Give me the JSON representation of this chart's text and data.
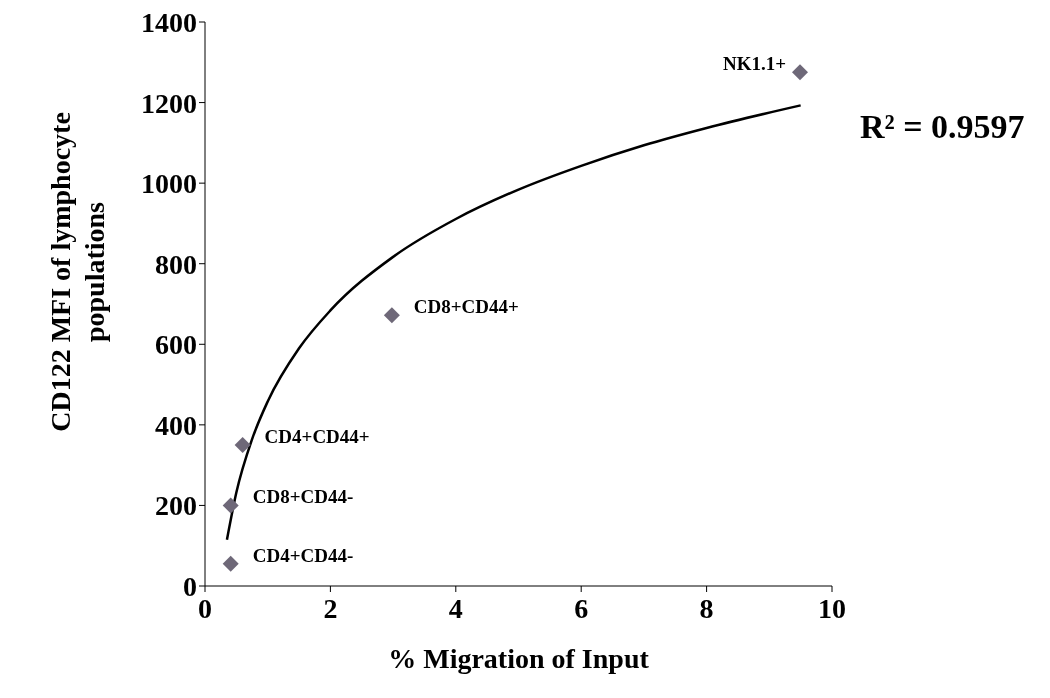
{
  "chart_data": {
    "type": "scatter",
    "xlabel": "% Migration of Input",
    "ylabel": "CD122 MFI of lymphocyte populations",
    "xlim": [
      0,
      10
    ],
    "xticks": [
      0,
      2,
      4,
      6,
      8,
      10
    ],
    "ylim": [
      0,
      1400
    ],
    "yticks": [
      0,
      200,
      400,
      600,
      800,
      1000,
      1200,
      1400
    ],
    "grid": false,
    "legend": false,
    "series": [
      {
        "color": "#6e6878",
        "marker": "diamond",
        "x": [
          0.41,
          0.41,
          0.6,
          2.98,
          9.49
        ],
        "values": [
          55,
          200,
          350,
          672,
          1275
        ]
      },
      {
        "type": "line",
        "color": "#000000",
        "marker": "none",
        "line_style": "solid",
        "x": [
          0.35,
          0.5,
          0.75,
          1,
          1.5,
          2,
          3,
          4,
          5,
          6,
          7,
          8,
          9.5
        ],
        "values": [
          115,
          232,
          364,
          458,
          590,
          684,
          817,
          911,
          984,
          1043,
          1094,
          1137,
          1193
        ]
      }
    ],
    "annotations": [
      {
        "text": "CD4+CD44-",
        "x": 0.41,
        "y": 55
      },
      {
        "text": "CD8+CD44-",
        "x": 0.41,
        "y": 200
      },
      {
        "text": "CD4+CD44+",
        "x": 0.6,
        "y": 350
      },
      {
        "text": "CD8+CD44+",
        "x": 2.98,
        "y": 672
      },
      {
        "text": "NK1.1+",
        "x": 9.49,
        "y": 1275
      },
      "R² = 0.9597"
    ]
  }
}
